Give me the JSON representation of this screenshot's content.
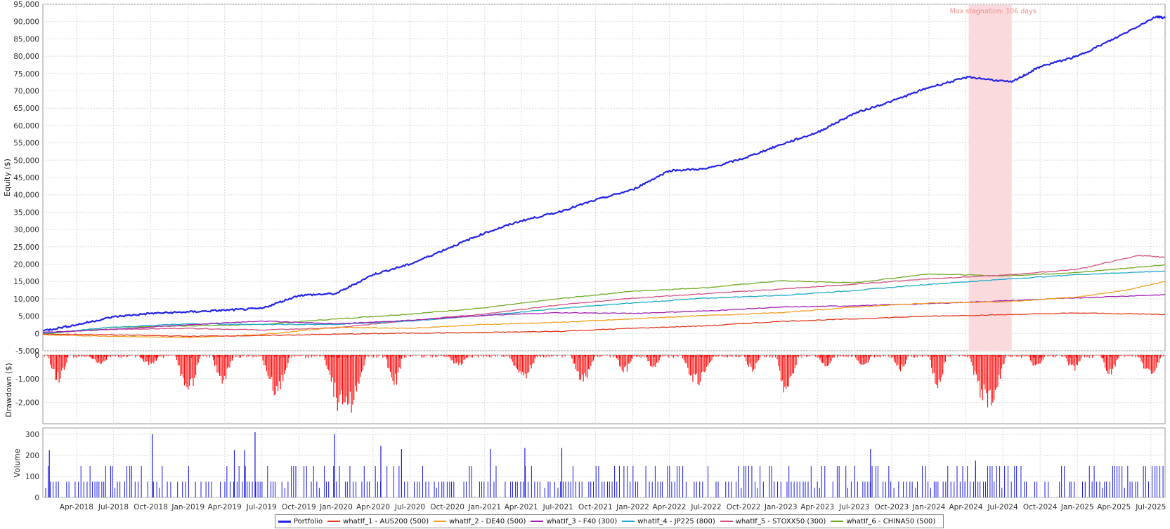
{
  "chart_data": [
    {
      "type": "line",
      "panel": "equity",
      "ylabel": "Equity ($)",
      "ylim": [
        -5000,
        95000
      ],
      "yticks": [
        -5000,
        0,
        5000,
        10000,
        15000,
        20000,
        25000,
        30000,
        35000,
        40000,
        45000,
        50000,
        55000,
        60000,
        65000,
        70000,
        75000,
        80000,
        85000,
        90000,
        95000
      ],
      "ytick_labels": [
        "-5,000",
        "0",
        "5,000",
        "10,000",
        "15,000",
        "20,000",
        "25,000",
        "30,000",
        "35,000",
        "40,000",
        "45,000",
        "50,000",
        "55,000",
        "60,000",
        "65,000",
        "70,000",
        "75,000",
        "80,000",
        "85,000",
        "90,000",
        "95,000"
      ],
      "xlim": [
        "2018-01-08",
        "2025-08-05"
      ],
      "xtick_labels": [
        "Apr-2018",
        "Jul-2018",
        "Oct-2018",
        "Jan-2019",
        "Apr-2019",
        "Jul-2019",
        "Oct-2019",
        "Jan-2020",
        "Apr-2020",
        "Jul-2020",
        "Oct-2020",
        "Jan-2021",
        "Apr-2021",
        "Jul-2021",
        "Oct-2021",
        "Jan-2022",
        "Apr-2022",
        "Jul-2022",
        "Oct-2022",
        "Jan-2023",
        "Apr-2023",
        "Jul-2023",
        "Oct-2023",
        "Jan-2024",
        "Apr-2024",
        "Jul-2024",
        "Oct-2024",
        "Jan-2025",
        "Apr-2025",
        "Jul-2025"
      ],
      "grid": true,
      "shaded_region": {
        "x": [
          "2024-04-08",
          "2024-07-23"
        ],
        "label": "Max stagnation: 106 days",
        "color": "#fadadd"
      },
      "series": [
        {
          "name": "Portfolio",
          "color": "#2323e8",
          "width": 2.2,
          "x": [
            "2018-01-08",
            "2018-04-01",
            "2018-07-01",
            "2018-10-01",
            "2019-01-01",
            "2019-04-01",
            "2019-07-01",
            "2019-10-01",
            "2020-01-01",
            "2020-04-01",
            "2020-07-01",
            "2020-10-01",
            "2021-01-01",
            "2021-04-01",
            "2021-07-01",
            "2021-10-01",
            "2022-01-01",
            "2022-04-01",
            "2022-07-01",
            "2022-10-01",
            "2023-01-01",
            "2023-04-01",
            "2023-07-01",
            "2023-10-01",
            "2024-01-01",
            "2024-04-08",
            "2024-07-23",
            "2024-10-01",
            "2025-01-01",
            "2025-04-01",
            "2025-07-15",
            "2025-08-05"
          ],
          "y": [
            800,
            2500,
            4800,
            5800,
            6200,
            6700,
            7200,
            11000,
            11500,
            17000,
            20000,
            24500,
            29000,
            32500,
            35000,
            38500,
            41500,
            47000,
            47500,
            50500,
            54500,
            58000,
            63500,
            67000,
            71000,
            74000,
            72500,
            77000,
            80000,
            85000,
            91500,
            91000
          ]
        },
        {
          "name": "whatIf_1 - AUS200 (500)",
          "color": "#e23a1f",
          "width": 1.3,
          "x": [
            "2018-01-08",
            "2018-07-01",
            "2019-01-01",
            "2019-07-01",
            "2020-01-01",
            "2020-07-01",
            "2021-01-01",
            "2021-07-01",
            "2022-01-01",
            "2022-07-01",
            "2023-01-01",
            "2023-07-01",
            "2024-01-01",
            "2024-07-01",
            "2025-01-01",
            "2025-08-05"
          ],
          "y": [
            -200,
            -400,
            -800,
            -600,
            -200,
            100,
            300,
            600,
            1500,
            2200,
            3500,
            4200,
            5000,
            5400,
            5900,
            5500
          ]
        },
        {
          "name": "whatIf_2 - DE40 (500)",
          "color": "#f0a020",
          "width": 1.3,
          "x": [
            "2018-01-08",
            "2018-07-01",
            "2019-01-01",
            "2019-07-01",
            "2020-01-01",
            "2020-07-01",
            "2021-01-01",
            "2021-07-01",
            "2022-01-01",
            "2022-07-01",
            "2023-01-01",
            "2023-07-01",
            "2024-01-01",
            "2024-07-01",
            "2025-01-01",
            "2025-05-01",
            "2025-08-05"
          ],
          "y": [
            -400,
            -800,
            -1200,
            -300,
            1800,
            1500,
            2600,
            3200,
            4200,
            5200,
            6000,
            7600,
            8800,
            9100,
            10500,
            12500,
            15000
          ]
        },
        {
          "name": "whatIf_3 - F40 (300)",
          "color": "#a020b0",
          "width": 1.3,
          "x": [
            "2018-01-08",
            "2018-07-01",
            "2019-01-01",
            "2019-07-01",
            "2020-01-01",
            "2020-07-01",
            "2021-01-01",
            "2021-07-01",
            "2022-01-01",
            "2022-07-01",
            "2023-01-01",
            "2023-07-01",
            "2024-01-01",
            "2024-07-01",
            "2025-01-01",
            "2025-08-05"
          ],
          "y": [
            300,
            1200,
            2500,
            3600,
            2800,
            3800,
            5200,
            6000,
            5800,
            6500,
            7600,
            8000,
            8600,
            9400,
            10300,
            11200
          ]
        },
        {
          "name": "whatIf_4 - JP225 (800)",
          "color": "#1aa8c8",
          "width": 1.3,
          "x": [
            "2018-01-08",
            "2018-07-01",
            "2019-01-01",
            "2019-07-01",
            "2020-01-01",
            "2020-07-01",
            "2021-01-01",
            "2021-07-01",
            "2022-01-01",
            "2022-07-01",
            "2023-01-01",
            "2023-07-01",
            "2024-01-01",
            "2024-07-01",
            "2025-01-01",
            "2025-08-05"
          ],
          "y": [
            0,
            1800,
            2800,
            2600,
            2600,
            3600,
            5200,
            7200,
            8800,
            10200,
            11000,
            12400,
            14200,
            15600,
            17000,
            18000
          ]
        },
        {
          "name": "whatIf_5 - STOXX50 (300)",
          "color": "#d05080",
          "width": 1.3,
          "x": [
            "2018-01-08",
            "2018-07-01",
            "2019-01-01",
            "2019-07-01",
            "2020-01-01",
            "2020-07-01",
            "2021-01-01",
            "2021-07-01",
            "2022-01-01",
            "2022-07-01",
            "2023-01-01",
            "2023-07-01",
            "2024-01-01",
            "2024-07-01",
            "2025-01-01",
            "2025-06-01",
            "2025-08-05"
          ],
          "y": [
            200,
            1200,
            1500,
            1000,
            1600,
            3800,
            5600,
            8200,
            10200,
            11500,
            12800,
            14200,
            15800,
            16800,
            18500,
            22500,
            22000
          ]
        },
        {
          "name": "whatIf_6 - CHINA50 (500)",
          "color": "#70a820",
          "width": 1.3,
          "x": [
            "2018-01-08",
            "2018-07-01",
            "2019-01-01",
            "2019-07-01",
            "2020-01-01",
            "2020-07-01",
            "2021-01-01",
            "2021-07-01",
            "2022-01-01",
            "2022-07-01",
            "2023-01-01",
            "2023-07-01",
            "2024-01-01",
            "2024-07-01",
            "2025-01-01",
            "2025-08-05"
          ],
          "y": [
            -200,
            1800,
            2200,
            2600,
            4200,
            5600,
            7400,
            10000,
            12200,
            13200,
            15200,
            14600,
            17200,
            16600,
            17600,
            19800
          ]
        }
      ]
    },
    {
      "type": "bar",
      "panel": "drawdown",
      "ylabel": "Drawdown ($)",
      "ylim": [
        -2900,
        0
      ],
      "yticks": [
        0,
        -1000,
        -2000
      ],
      "ytick_labels": [
        "0",
        "-1,000",
        "-2,000"
      ],
      "color": "#ff0000",
      "episodes": [
        {
          "x": [
            "2018-01-20",
            "2018-03-20"
          ],
          "trough": -1300
        },
        {
          "x": [
            "2018-05-01",
            "2018-07-01"
          ],
          "trough": -400
        },
        {
          "x": [
            "2018-09-01",
            "2018-11-01"
          ],
          "trough": -500
        },
        {
          "x": [
            "2018-12-01",
            "2019-02-10"
          ],
          "trough": -1750
        },
        {
          "x": [
            "2019-03-01",
            "2019-05-01"
          ],
          "trough": -1300
        },
        {
          "x": [
            "2019-07-01",
            "2019-09-20"
          ],
          "trough": -1800
        },
        {
          "x": [
            "2019-12-01",
            "2020-04-01"
          ],
          "trough": -2800
        },
        {
          "x": [
            "2020-05-01",
            "2020-06-20"
          ],
          "trough": -1400
        },
        {
          "x": [
            "2020-10-01",
            "2020-12-01"
          ],
          "trough": -500
        },
        {
          "x": [
            "2021-03-01",
            "2021-05-20"
          ],
          "trough": -1100
        },
        {
          "x": [
            "2021-08-01",
            "2021-10-10"
          ],
          "trough": -1200
        },
        {
          "x": [
            "2021-11-20",
            "2022-01-10"
          ],
          "trough": -800
        },
        {
          "x": [
            "2022-02-01",
            "2022-03-20"
          ],
          "trough": -600
        },
        {
          "x": [
            "2022-05-01",
            "2022-08-01"
          ],
          "trough": -1300
        },
        {
          "x": [
            "2022-10-01",
            "2022-11-20"
          ],
          "trough": -700
        },
        {
          "x": [
            "2022-12-20",
            "2023-02-20"
          ],
          "trough": -1850
        },
        {
          "x": [
            "2023-04-01",
            "2023-05-20"
          ],
          "trough": -500
        },
        {
          "x": [
            "2023-07-01",
            "2023-08-20"
          ],
          "trough": -600
        },
        {
          "x": [
            "2023-10-01",
            "2023-11-20"
          ],
          "trough": -700
        },
        {
          "x": [
            "2024-01-01",
            "2024-02-20"
          ],
          "trough": -1400
        },
        {
          "x": [
            "2024-04-08",
            "2024-07-23"
          ],
          "trough": -2300
        },
        {
          "x": [
            "2024-09-01",
            "2024-10-20"
          ],
          "trough": -600
        },
        {
          "x": [
            "2024-12-01",
            "2025-01-20"
          ],
          "trough": -700
        },
        {
          "x": [
            "2025-03-01",
            "2025-04-20"
          ],
          "trough": -900
        },
        {
          "x": [
            "2025-06-01",
            "2025-08-05"
          ],
          "trough": -900
        }
      ]
    },
    {
      "type": "bar",
      "panel": "volume",
      "ylabel": "Volume",
      "ylim": [
        0,
        330
      ],
      "yticks": [
        0,
        100,
        200,
        300
      ],
      "ytick_labels": [
        "0",
        "100",
        "200",
        "300"
      ],
      "color": "#1a1ae6",
      "base_levels": [
        75,
        150
      ],
      "peaks": [
        {
          "x": "2018-01-24",
          "y": 225
        },
        {
          "x": "2018-10-05",
          "y": 300
        },
        {
          "x": "2019-04-25",
          "y": 225
        },
        {
          "x": "2019-05-20",
          "y": 225
        },
        {
          "x": "2019-06-15",
          "y": 310
        },
        {
          "x": "2019-12-28",
          "y": 300
        },
        {
          "x": "2020-04-20",
          "y": 245
        },
        {
          "x": "2020-06-10",
          "y": 230
        },
        {
          "x": "2021-01-15",
          "y": 230
        },
        {
          "x": "2021-04-10",
          "y": 235
        },
        {
          "x": "2021-07-10",
          "y": 235
        },
        {
          "x": "2023-08-10",
          "y": 230
        },
        {
          "x": "2024-04-25",
          "y": 175
        }
      ]
    }
  ]
}
